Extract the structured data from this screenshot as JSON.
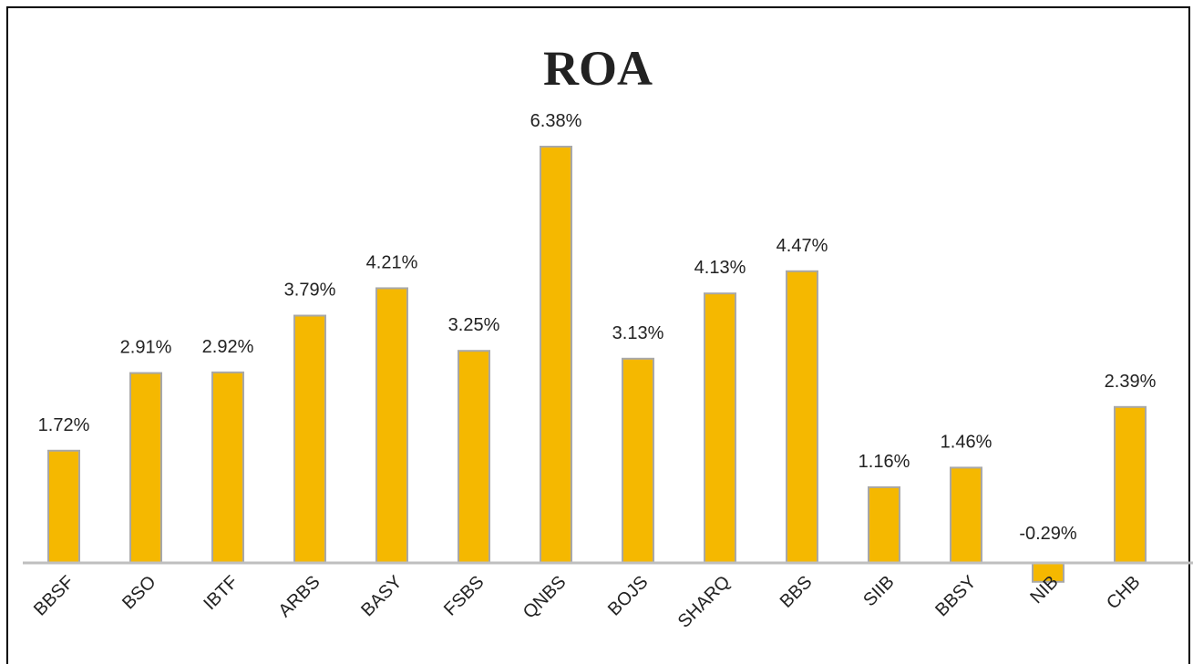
{
  "chart_data": {
    "type": "bar",
    "title": "ROA",
    "categories": [
      "BBSF",
      "BSO",
      "IBTF",
      "ARBS",
      "BASY",
      "FSBS",
      "QNBS",
      "BOJS",
      "SHARQ",
      "BBS",
      "SIIB",
      "BBSY",
      "NIB",
      "CHB"
    ],
    "values": [
      1.72,
      2.91,
      2.92,
      3.79,
      4.21,
      3.25,
      6.38,
      3.13,
      4.13,
      4.47,
      1.16,
      1.46,
      -0.29,
      2.39
    ],
    "value_labels": [
      "1.72%",
      "2.91%",
      "2.92%",
      "3.79%",
      "4.21%",
      "3.25%",
      "6.38%",
      "3.13%",
      "4.13%",
      "4.47%",
      "1.16%",
      "1.46%",
      "-0.29%",
      "2.39%"
    ],
    "color": "#f5b800"
  }
}
